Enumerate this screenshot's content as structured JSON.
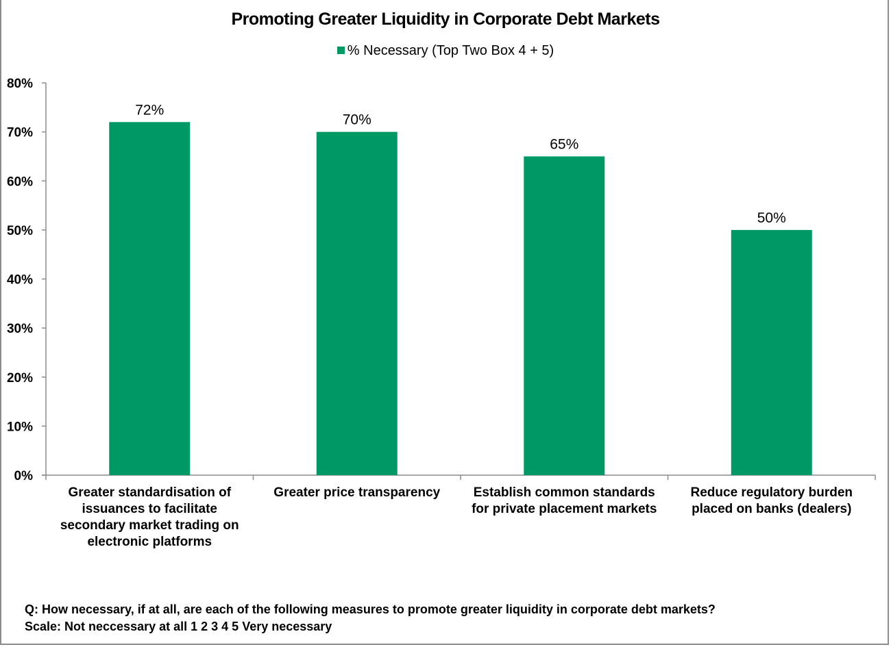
{
  "chart_data": {
    "type": "bar",
    "title": "Promoting Greater Liquidity in Corporate Debt Markets",
    "legend": {
      "position": "top-center",
      "entries": [
        {
          "name": "% Necessary (Top Two Box 4 + 5)",
          "color": "#009966"
        }
      ]
    },
    "categories": [
      [
        "Greater standardisation of",
        "issuances to facilitate",
        "secondary market trading on",
        "electronic platforms"
      ],
      [
        "Greater price transparency"
      ],
      [
        "Establish common standards",
        "for private placement markets"
      ],
      [
        "Reduce regulatory burden",
        "placed on banks (dealers)"
      ]
    ],
    "series": [
      {
        "name": "% Necessary (Top Two Box 4 + 5)",
        "color": "#009966",
        "values": [
          72,
          70,
          65,
          50
        ],
        "labels": [
          "72%",
          "70%",
          "65%",
          "50%"
        ]
      }
    ],
    "xlabel": "",
    "ylabel": "",
    "ylim": [
      0,
      80
    ],
    "yticks": [
      0,
      10,
      20,
      30,
      40,
      50,
      60,
      70,
      80
    ],
    "ytick_labels": [
      "0%",
      "10%",
      "20%",
      "30%",
      "40%",
      "50%",
      "60%",
      "70%",
      "80%"
    ],
    "grid": false
  },
  "footnote": {
    "question": "Q: How necessary, if at all, are each of the following measures to promote greater liquidity in corporate debt markets?",
    "scale": "Scale: Not neccessary at all 1 2 3 4 5 Very necessary"
  }
}
